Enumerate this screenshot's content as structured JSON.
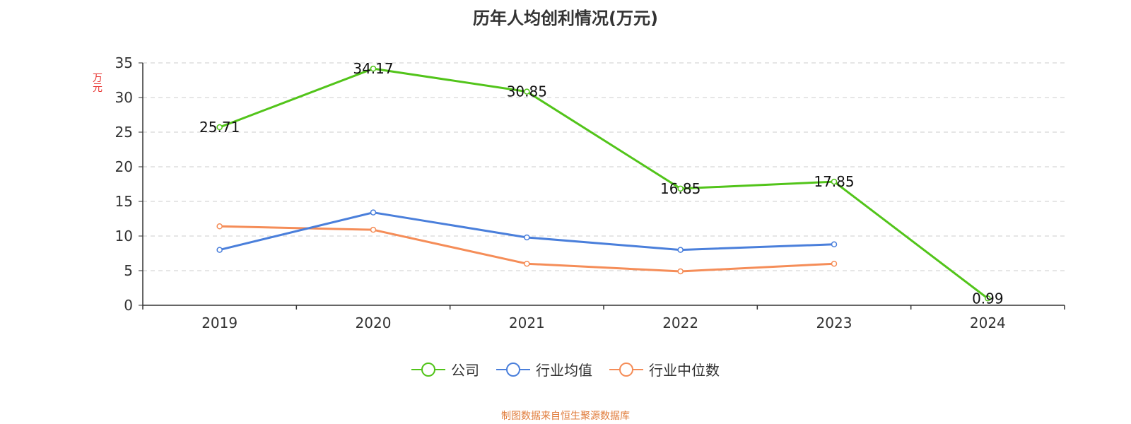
{
  "chart_data": {
    "type": "line",
    "title": "历年人均创利情况(万元)",
    "ylabel": "万元",
    "xlabel": "",
    "categories": [
      "2019",
      "2020",
      "2021",
      "2022",
      "2023",
      "2024"
    ],
    "ylim": [
      0,
      35
    ],
    "yticks": [
      "0",
      "5",
      "10",
      "15",
      "20",
      "25",
      "30",
      "35"
    ],
    "grid": true,
    "legend_position": "bottom",
    "series": [
      {
        "name": "公司",
        "color": "#52c41a",
        "values": [
          25.71,
          34.17,
          30.85,
          16.85,
          17.85,
          0.99
        ],
        "labels": [
          "25.71",
          "34.17",
          "30.85",
          "16.85",
          "17.85",
          "0.99"
        ]
      },
      {
        "name": "行业均值",
        "color": "#4a7fdb",
        "values": [
          8.0,
          13.4,
          9.8,
          8.0,
          8.8,
          null
        ]
      },
      {
        "name": "行业中位数",
        "color": "#f58d58",
        "values": [
          11.4,
          10.9,
          6.0,
          4.9,
          6.0,
          null
        ]
      }
    ]
  },
  "source": "制图数据来自恒生聚源数据库"
}
